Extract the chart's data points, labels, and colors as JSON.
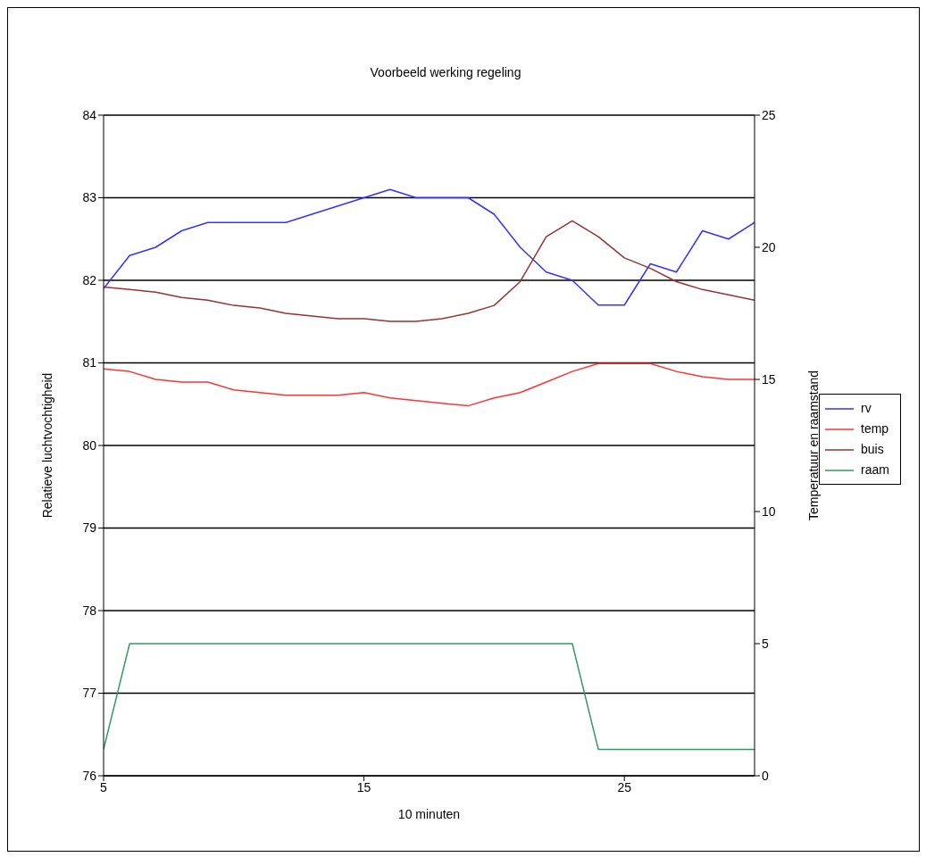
{
  "chart_data": {
    "type": "line",
    "title": "Voorbeeld werking regeling",
    "xlabel": "10 minuten",
    "ylabel": "Relatieve luchtvochtigheid",
    "y2label": "Temperatuur en raamstand",
    "x": [
      5,
      6,
      7,
      8,
      9,
      10,
      11,
      12,
      13,
      14,
      15,
      16,
      17,
      18,
      19,
      20,
      21,
      22,
      23,
      24,
      25,
      26,
      27,
      28,
      29,
      30
    ],
    "series": [
      {
        "name": "rv",
        "color": "#3333ff",
        "values": [
          81.9,
          82.3,
          82.4,
          82.6,
          82.7,
          82.7,
          82.7,
          82.7,
          82.8,
          82.9,
          83.0,
          83.1,
          83.0,
          83.0,
          83.0,
          82.8,
          82.4,
          82.1,
          82.0,
          81.7,
          81.7,
          82.2,
          82.1,
          82.6,
          82.5,
          82.7
        ]
      },
      {
        "name": "temp",
        "color": "#ff3333",
        "axis": "y2",
        "values": [
          15.4,
          15.3,
          15.0,
          14.9,
          14.9,
          14.6,
          14.5,
          14.4,
          14.4,
          14.4,
          14.5,
          14.3,
          14.2,
          14.1,
          14.0,
          14.3,
          14.5,
          14.9,
          15.3,
          15.6,
          15.6,
          15.6,
          15.3,
          15.1,
          15.0,
          15.0
        ]
      },
      {
        "name": "buis",
        "color": "#993333",
        "axis": "y2",
        "values": [
          18.5,
          18.4,
          18.3,
          18.1,
          18.0,
          17.8,
          17.7,
          17.5,
          17.4,
          17.3,
          17.3,
          17.2,
          17.2,
          17.3,
          17.5,
          17.8,
          18.7,
          20.4,
          21.0,
          20.4,
          19.6,
          19.2,
          18.7,
          18.4,
          18.2,
          18.0
        ]
      },
      {
        "name": "raam",
        "color": "#339966",
        "axis": "y2",
        "values": [
          1,
          5,
          5,
          5,
          5,
          5,
          5,
          5,
          5,
          5,
          5,
          5,
          5,
          5,
          5,
          5,
          5,
          5,
          5,
          1,
          1,
          1,
          1,
          1,
          1,
          1
        ]
      }
    ],
    "xlim": [
      5,
      30
    ],
    "xticks": [
      5,
      15,
      25
    ],
    "ylim": [
      76,
      84
    ],
    "yticks": [
      76,
      77,
      78,
      79,
      80,
      81,
      82,
      83,
      84
    ],
    "y2lim": [
      0,
      25
    ],
    "y2ticks": [
      0,
      5,
      10,
      15,
      20,
      25
    ],
    "grid": "y",
    "legend": "right",
    "marker": "none",
    "line_style": "solid"
  }
}
